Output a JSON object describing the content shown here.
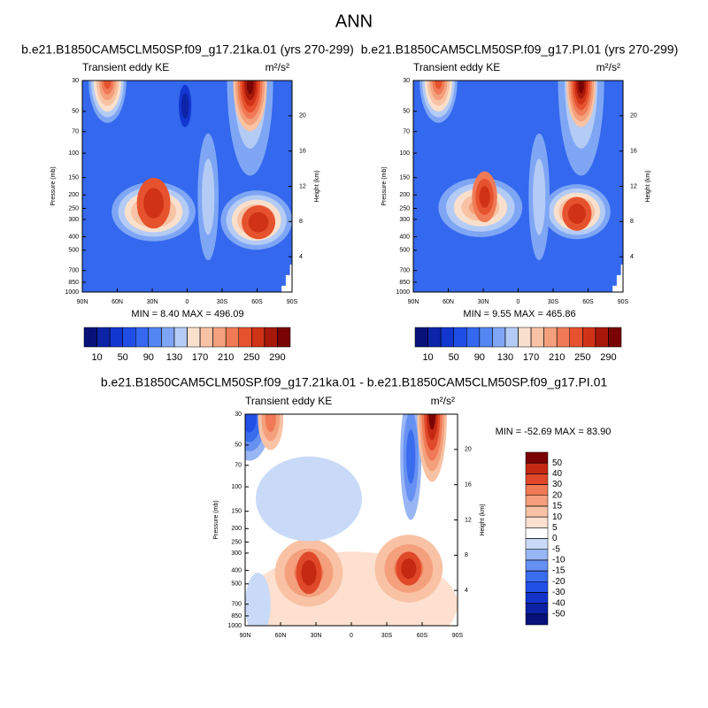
{
  "figure_title": "ANN",
  "chart_data": [
    {
      "type": "contour",
      "title": "b.e21.B1850CAM5CLM50SP.f09_g17.21ka.01 (yrs 270-299)",
      "subtitle": "Transient eddy KE",
      "units": "m²/s²",
      "ylabel": "Pressure (mb)",
      "y2label": "Height (km)",
      "ylog": true,
      "xlim": [
        90,
        -90
      ],
      "xticks": [
        {
          "value": 90,
          "label": "90N"
        },
        {
          "value": 60,
          "label": "60N"
        },
        {
          "value": 30,
          "label": "30N"
        },
        {
          "value": 0,
          "label": "0"
        },
        {
          "value": -30,
          "label": "30S"
        },
        {
          "value": -60,
          "label": "60S"
        },
        {
          "value": -90,
          "label": "90S"
        }
      ],
      "ylim": [
        30,
        1000
      ],
      "yticks": [
        30,
        50,
        70,
        100,
        150,
        200,
        250,
        300,
        400,
        500,
        700,
        850,
        1000
      ],
      "y2lim": [
        0,
        24
      ],
      "y2ticks": [
        4,
        8,
        12,
        16,
        20
      ],
      "stats": "MIN =  8.40  MAX = 496.09",
      "colorbar": {
        "orientation": "horizontal",
        "label_every": 2,
        "levels": [
          10,
          30,
          50,
          70,
          90,
          110,
          130,
          150,
          170,
          190,
          210,
          230,
          250,
          270,
          290
        ],
        "colors": [
          "#06127a",
          "#0c24a8",
          "#1236d0",
          "#1f4ee6",
          "#3468ee",
          "#5286f2",
          "#7ea6f4",
          "#b4cbf5",
          "#f9e0cc",
          "#f8c2a4",
          "#f4a07c",
          "#ef7a55",
          "#e6522e",
          "#d03216",
          "#a8180a",
          "#7a0404"
        ]
      }
    },
    {
      "type": "contour",
      "title": "b.e21.B1850CAM5CLM50SP.f09_g17.PI.01 (yrs 270-299)",
      "subtitle": "Transient eddy KE",
      "units": "m²/s²",
      "ylabel": "Pressure (mb)",
      "y2label": "Height (km)",
      "ylog": true,
      "xlim": [
        90,
        -90
      ],
      "xticks": [
        {
          "value": 90,
          "label": "90N"
        },
        {
          "value": 60,
          "label": "60N"
        },
        {
          "value": 30,
          "label": "30N"
        },
        {
          "value": 0,
          "label": "0"
        },
        {
          "value": -30,
          "label": "30S"
        },
        {
          "value": -60,
          "label": "60S"
        },
        {
          "value": -90,
          "label": "90S"
        }
      ],
      "ylim": [
        30,
        1000
      ],
      "yticks": [
        30,
        50,
        70,
        100,
        150,
        200,
        250,
        300,
        400,
        500,
        700,
        850,
        1000
      ],
      "y2lim": [
        0,
        24
      ],
      "y2ticks": [
        4,
        8,
        12,
        16,
        20
      ],
      "stats": "MIN =  9.55  MAX = 465.86",
      "colorbar": {
        "orientation": "horizontal",
        "label_every": 2,
        "levels": [
          10,
          30,
          50,
          70,
          90,
          110,
          130,
          150,
          170,
          190,
          210,
          230,
          250,
          270,
          290
        ],
        "colors": [
          "#06127a",
          "#0c24a8",
          "#1236d0",
          "#1f4ee6",
          "#3468ee",
          "#5286f2",
          "#7ea6f4",
          "#b4cbf5",
          "#f9e0cc",
          "#f8c2a4",
          "#f4a07c",
          "#ef7a55",
          "#e6522e",
          "#d03216",
          "#a8180a",
          "#7a0404"
        ]
      }
    },
    {
      "type": "contour",
      "title": "b.e21.B1850CAM5CLM50SP.f09_g17.21ka.01 - b.e21.B1850CAM5CLM50SP.f09_g17.PI.01",
      "subtitle": "Transient eddy KE",
      "units": "m²/s²",
      "ylabel": "Pressure (mb)",
      "y2label": "Height (km)",
      "ylog": true,
      "xlim": [
        90,
        -90
      ],
      "xticks": [
        {
          "value": 90,
          "label": "90N"
        },
        {
          "value": 60,
          "label": "60N"
        },
        {
          "value": 30,
          "label": "30N"
        },
        {
          "value": 0,
          "label": "0"
        },
        {
          "value": -30,
          "label": "30S"
        },
        {
          "value": -60,
          "label": "60S"
        },
        {
          "value": -90,
          "label": "90S"
        }
      ],
      "ylim": [
        30,
        1000
      ],
      "yticks": [
        30,
        50,
        70,
        100,
        150,
        200,
        250,
        300,
        400,
        500,
        700,
        850,
        1000
      ],
      "y2lim": [
        0,
        24
      ],
      "y2ticks": [
        4,
        8,
        12,
        16,
        20
      ],
      "stats": "MIN = -52.69  MAX =  83.90",
      "colorbar": {
        "orientation": "vertical",
        "label_every": 1,
        "levels": [
          -50,
          -40,
          -30,
          -20,
          -15,
          -10,
          -5,
          0,
          5,
          10,
          15,
          20,
          30,
          40,
          50
        ],
        "colors": [
          "#06127a",
          "#0c22a5",
          "#1234cc",
          "#2050e6",
          "#3a6cee",
          "#6690f2",
          "#98b6f4",
          "#c8daf8",
          "#ffffff",
          "#fde0cf",
          "#f9c2a4",
          "#f4a07c",
          "#ef7a55",
          "#e0482a",
          "#c42a12",
          "#7a0404"
        ]
      }
    }
  ]
}
